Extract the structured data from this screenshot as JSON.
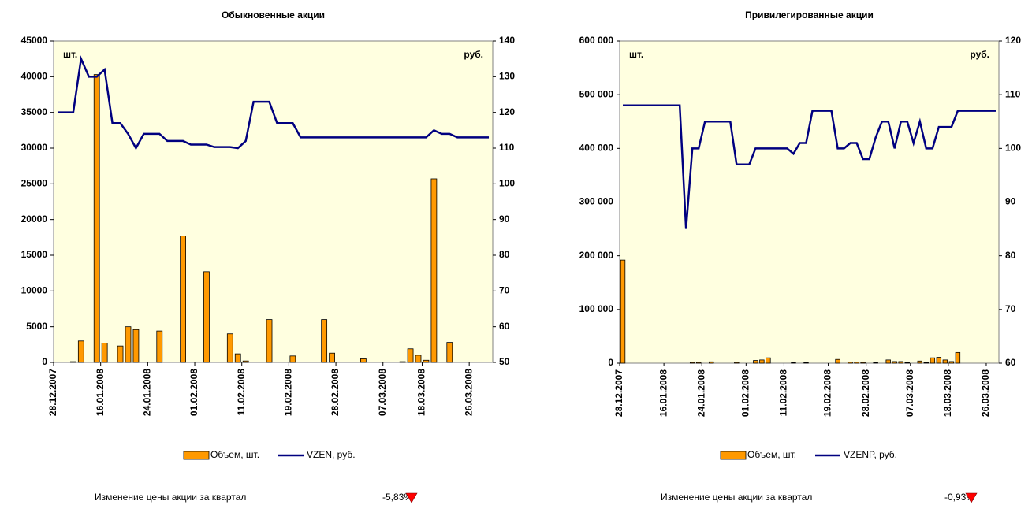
{
  "chart_data": [
    {
      "type": "combo",
      "title": "Обыкновенные акции",
      "y_unit": "шт.",
      "y2_unit": "руб.",
      "categories": [
        "28.12.2007",
        null,
        null,
        null,
        null,
        null,
        "16.01.2008",
        null,
        null,
        null,
        null,
        null,
        "24.01.2008",
        null,
        null,
        null,
        null,
        null,
        "01.02.2008",
        null,
        null,
        null,
        null,
        null,
        "11.02.2008",
        null,
        null,
        null,
        null,
        null,
        "19.02.2008",
        null,
        null,
        null,
        null,
        null,
        "28.02.2008",
        null,
        null,
        null,
        null,
        null,
        "07.03.2008",
        null,
        null,
        null,
        null,
        "18.03.2008",
        null,
        null,
        null,
        null,
        null,
        "26.03.2008",
        null,
        null
      ],
      "ylim": [
        0,
        45000
      ],
      "yticks": [
        0,
        5000,
        10000,
        15000,
        20000,
        25000,
        30000,
        35000,
        40000,
        45000
      ],
      "y2lim": [
        50,
        140
      ],
      "y2ticks": [
        50,
        60,
        70,
        80,
        90,
        100,
        110,
        120,
        130,
        140
      ],
      "series": [
        {
          "name": "Объем, шт.",
          "type": "bar",
          "color": "#ff9900",
          "values": [
            0,
            0,
            100,
            3000,
            0,
            40300,
            2700,
            0,
            2300,
            5000,
            4600,
            0,
            0,
            4400,
            0,
            0,
            17700,
            0,
            0,
            12700,
            0,
            0,
            4000,
            1200,
            200,
            0,
            0,
            6000,
            0,
            0,
            900,
            0,
            0,
            0,
            6000,
            1300,
            0,
            0,
            0,
            500,
            0,
            0,
            0,
            0,
            100,
            1900,
            1000,
            300,
            25700,
            0,
            2800,
            0,
            0,
            0,
            0,
            0
          ]
        },
        {
          "name": "VZEN, руб.",
          "type": "line",
          "axis": "y2",
          "color": "#000080",
          "values": [
            120,
            120,
            120,
            135,
            130,
            130,
            132,
            117,
            117,
            114,
            110,
            114,
            114,
            114,
            112,
            112,
            112,
            111,
            111,
            111,
            110.3,
            110.3,
            110.3,
            110,
            112,
            123,
            123,
            123,
            117,
            117,
            117,
            113,
            113,
            113,
            113,
            113,
            113,
            113,
            113,
            113,
            113,
            113,
            113,
            113,
            113,
            113,
            113,
            113,
            115,
            114,
            114,
            113,
            113,
            113,
            113,
            113
          ]
        }
      ],
      "footer": {
        "label": "Изменение цены акции за квартал",
        "value": "-5,83%"
      }
    },
    {
      "type": "combo",
      "title": "Привилегированные акции",
      "y_unit": "шт.",
      "y2_unit": "руб.",
      "categories": [
        "28.12.2007",
        null,
        null,
        null,
        null,
        null,
        null,
        "16.01.2008",
        null,
        null,
        null,
        null,
        null,
        "24.01.2008",
        null,
        null,
        null,
        null,
        null,
        null,
        "01.02.2008",
        null,
        null,
        null,
        null,
        null,
        "11.02.2008",
        null,
        null,
        null,
        null,
        null,
        null,
        "19.02.2008",
        null,
        null,
        null,
        null,
        null,
        "28.02.2008",
        null,
        null,
        null,
        null,
        null,
        null,
        "07.03.2008",
        null,
        null,
        null,
        null,
        null,
        "18.03.2008",
        null,
        null,
        null,
        null,
        null,
        "26.03.2008",
        null
      ],
      "ylim": [
        0,
        600000
      ],
      "yticks": [
        0,
        {
          "value": 100000,
          "label": "100 000"
        },
        {
          "value": 200000,
          "label": "200 000"
        },
        {
          "value": 300000,
          "label": "300 000"
        },
        {
          "value": 400000,
          "label": "400 000"
        },
        {
          "value": 500000,
          "label": "500 000"
        },
        {
          "value": 600000,
          "label": "600 000"
        }
      ],
      "y2lim": [
        60,
        120
      ],
      "y2ticks": [
        60,
        70,
        80,
        90,
        100,
        110,
        120
      ],
      "series": [
        {
          "name": "Объем, шт.",
          "type": "bar",
          "color": "#ff9900",
          "values": [
            192000,
            0,
            0,
            0,
            0,
            0,
            0,
            0,
            0,
            0,
            0,
            1500,
            1500,
            0,
            2500,
            0,
            0,
            0,
            1500,
            0,
            0,
            5000,
            6000,
            10000,
            0,
            0,
            0,
            1000,
            0,
            1000,
            0,
            0,
            0,
            0,
            7000,
            0,
            2000,
            2000,
            1500,
            0,
            1000,
            0,
            6000,
            3000,
            3000,
            1000,
            0,
            4000,
            1000,
            10000,
            11000,
            6000,
            3000,
            20000,
            0,
            0,
            0,
            0,
            0,
            0
          ]
        },
        {
          "name": "VZENP, руб.",
          "type": "line",
          "axis": "y2",
          "color": "#000080",
          "values": [
            108,
            108,
            108,
            108,
            108,
            108,
            108,
            108,
            108,
            108,
            85,
            100,
            100,
            105,
            105,
            105,
            105,
            105,
            97,
            97,
            97,
            100,
            100,
            100,
            100,
            100,
            100,
            99,
            101,
            101,
            107,
            107,
            107,
            107,
            100,
            100,
            101,
            101,
            98,
            98,
            102,
            105,
            105,
            100,
            105,
            105,
            101,
            105,
            100,
            100,
            104,
            104,
            104,
            107,
            107,
            107,
            107,
            107,
            107,
            107
          ]
        }
      ],
      "footer": {
        "label": "Изменение цены акции за квартал",
        "value": "-0,93%"
      }
    }
  ]
}
